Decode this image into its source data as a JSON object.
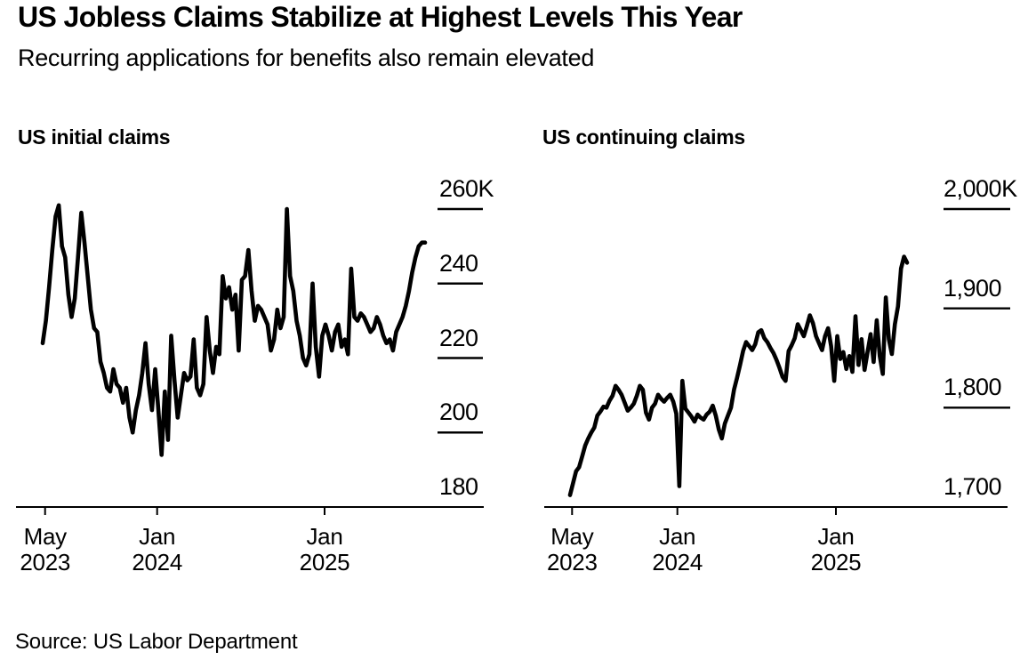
{
  "page": {
    "title": "US Jobless Claims Stabilize at Highest Levels This Year",
    "subtitle": "Recurring applications for benefits also remain elevated",
    "source": "Source: US Labor Department"
  },
  "colors": {
    "line": "#000000",
    "axis": "#000000",
    "text": "#000000",
    "background": "#ffffff"
  },
  "chart_data": [
    {
      "type": "line",
      "title": "US initial claims",
      "unit": "thousands of claims (K)",
      "frequency": "weekly",
      "x_range": "late Apr 2023 to mid 2025",
      "ylim": [
        180,
        260
      ],
      "grid": "tick dashes on right side only",
      "legend_position": "none",
      "x_ticks": [
        {
          "month": "May",
          "year": "2023"
        },
        {
          "month": "Jan",
          "year": "2024"
        },
        {
          "month": "Jan",
          "year": "2025"
        }
      ],
      "y_ticks": [
        "260K",
        "240",
        "220",
        "200",
        "180"
      ],
      "y_tick_values": [
        260,
        240,
        220,
        200,
        180
      ],
      "values": [
        224,
        230,
        239,
        249,
        258,
        261,
        250,
        247,
        237,
        231,
        236,
        247,
        259,
        251,
        242,
        233,
        228,
        227,
        219,
        216,
        212,
        211,
        217,
        213,
        212,
        208,
        212,
        204,
        200,
        206,
        210,
        216,
        224,
        213,
        206,
        217,
        206,
        194,
        211,
        198,
        226,
        214,
        204,
        210,
        216,
        214,
        215,
        225,
        212,
        210,
        213,
        231,
        222,
        216,
        223,
        221,
        242,
        236,
        239,
        233,
        237,
        222,
        241,
        242,
        249,
        238,
        230,
        234,
        233,
        231,
        229,
        222,
        225,
        233,
        228,
        231,
        260,
        242,
        238,
        230,
        226,
        220,
        218,
        221,
        240,
        223,
        215,
        226,
        229,
        226,
        222,
        227,
        229,
        223,
        225,
        221,
        244,
        231,
        230,
        232,
        231,
        229,
        227,
        228,
        231,
        229,
        226,
        224,
        225,
        222,
        227,
        229,
        231,
        234,
        238,
        243,
        247,
        250,
        251,
        251
      ]
    },
    {
      "type": "line",
      "title": "US continuing claims",
      "unit": "thousands of claims (K)",
      "frequency": "weekly",
      "x_range": "late Apr 2023 to mid 2025",
      "ylim": [
        1700,
        2000
      ],
      "grid": "tick dashes on right side only",
      "legend_position": "none",
      "x_ticks": [
        {
          "month": "May",
          "year": "2023"
        },
        {
          "month": "Jan",
          "year": "2024"
        },
        {
          "month": "Jan",
          "year": "2025"
        }
      ],
      "y_ticks": [
        "2,000K",
        "1,900",
        "1,800",
        "1,700"
      ],
      "y_tick_values": [
        2000,
        1900,
        1800,
        1700
      ],
      "values": [
        1712,
        1724,
        1736,
        1740,
        1751,
        1762,
        1769,
        1775,
        1780,
        1792,
        1796,
        1801,
        1800,
        1807,
        1812,
        1822,
        1818,
        1813,
        1805,
        1797,
        1800,
        1804,
        1812,
        1822,
        1818,
        1795,
        1788,
        1800,
        1804,
        1813,
        1809,
        1806,
        1810,
        1813,
        1806,
        1794,
        1721,
        1827,
        1799,
        1795,
        1791,
        1786,
        1793,
        1790,
        1788,
        1793,
        1796,
        1802,
        1792,
        1778,
        1769,
        1784,
        1792,
        1800,
        1818,
        1830,
        1843,
        1857,
        1866,
        1862,
        1858,
        1864,
        1876,
        1878,
        1870,
        1866,
        1860,
        1855,
        1848,
        1840,
        1831,
        1827,
        1857,
        1863,
        1870,
        1884,
        1878,
        1872,
        1882,
        1893,
        1885,
        1872,
        1865,
        1858,
        1872,
        1880,
        1862,
        1827,
        1872,
        1849,
        1856,
        1839,
        1852,
        1836,
        1892,
        1843,
        1869,
        1838,
        1856,
        1874,
        1846,
        1888,
        1852,
        1834,
        1911,
        1869,
        1854,
        1884,
        1902,
        1940,
        1952,
        1946
      ]
    }
  ]
}
